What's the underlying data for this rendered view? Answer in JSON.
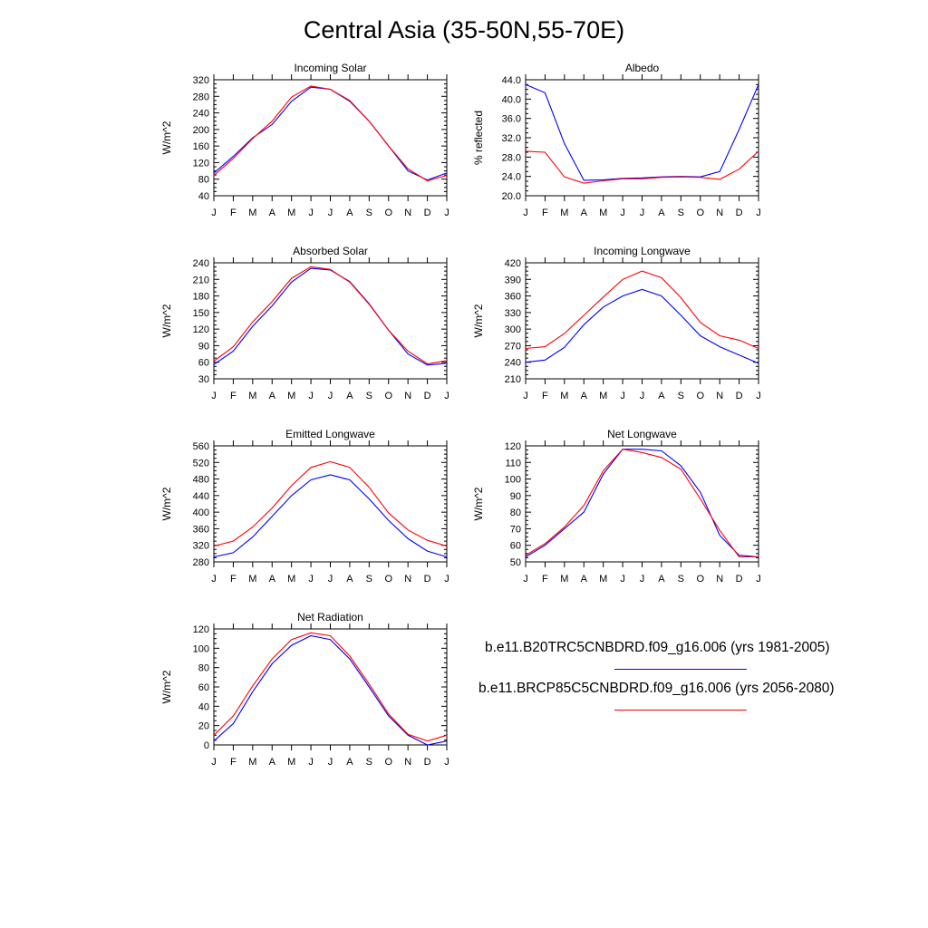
{
  "page": {
    "title": "Central Asia (35-50N,55-70E)"
  },
  "legend": [
    {
      "label": "b.e11.B20TRC5CNBDRD.f09_g16.006 (yrs 1981-2005)",
      "color": "#0000ff"
    },
    {
      "label": "b.e11.BRCP85C5CNBDRD.f09_g16.006 (yrs 2056-2080)",
      "color": "#ff0000"
    }
  ],
  "chart_data": [
    {
      "type": "line",
      "title": "Incoming Solar",
      "xlabel": "",
      "ylabel": "W/m^2",
      "categories": [
        "J",
        "F",
        "M",
        "A",
        "M",
        "J",
        "J",
        "A",
        "S",
        "O",
        "N",
        "D",
        "J"
      ],
      "ylim": [
        40,
        320
      ],
      "yticks": [
        40,
        80,
        120,
        160,
        200,
        240,
        280,
        320
      ],
      "ytick_labels": [
        "40",
        "80",
        "120",
        "160",
        "200",
        "240",
        "280",
        "320"
      ],
      "series": [
        {
          "color": "#0000ff",
          "values": [
            95,
            135,
            180,
            212,
            268,
            302,
            297,
            268,
            220,
            160,
            100,
            78,
            95
          ]
        },
        {
          "color": "#ff0000",
          "values": [
            89,
            130,
            178,
            220,
            278,
            305,
            297,
            270,
            220,
            160,
            105,
            76,
            89
          ]
        }
      ]
    },
    {
      "type": "line",
      "title": "Albedo",
      "xlabel": "",
      "ylabel": "% reflected",
      "categories": [
        "J",
        "F",
        "M",
        "A",
        "M",
        "J",
        "J",
        "A",
        "S",
        "O",
        "N",
        "D",
        "J"
      ],
      "ylim": [
        20,
        44
      ],
      "yticks": [
        20,
        24,
        28,
        32,
        36,
        40,
        44
      ],
      "ytick_labels": [
        "20.0",
        "24.0",
        "28.0",
        "32.0",
        "36.0",
        "40.0",
        "44.0"
      ],
      "series": [
        {
          "color": "#0000ff",
          "values": [
            43.0,
            41.3,
            30.8,
            23.2,
            23.3,
            23.6,
            23.7,
            23.9,
            24.0,
            23.9,
            25.0,
            33.7,
            43.0
          ]
        },
        {
          "color": "#ff0000",
          "values": [
            29.2,
            29.0,
            23.9,
            22.6,
            23.1,
            23.5,
            23.5,
            23.8,
            23.9,
            23.8,
            23.4,
            25.5,
            29.2
          ]
        }
      ]
    },
    {
      "type": "line",
      "title": "Absorbed Solar",
      "xlabel": "",
      "ylabel": "W/m^2",
      "categories": [
        "J",
        "F",
        "M",
        "A",
        "M",
        "J",
        "J",
        "A",
        "S",
        "O",
        "N",
        "D",
        "J"
      ],
      "ylim": [
        30,
        240
      ],
      "yticks": [
        30,
        60,
        90,
        120,
        150,
        180,
        210,
        240
      ],
      "ytick_labels": [
        "30",
        "60",
        "90",
        "120",
        "150",
        "180",
        "210",
        "240"
      ],
      "series": [
        {
          "color": "#0000ff",
          "values": [
            56,
            80,
            125,
            162,
            205,
            230,
            227,
            206,
            166,
            118,
            75,
            55,
            58
          ]
        },
        {
          "color": "#ff0000",
          "values": [
            62,
            88,
            133,
            170,
            212,
            233,
            228,
            205,
            165,
            118,
            80,
            57,
            63
          ]
        }
      ]
    },
    {
      "type": "line",
      "title": "Incoming Longwave",
      "xlabel": "",
      "ylabel": "W/m^2",
      "categories": [
        "J",
        "F",
        "M",
        "A",
        "M",
        "J",
        "J",
        "A",
        "S",
        "O",
        "N",
        "D",
        "J"
      ],
      "ylim": [
        210,
        420
      ],
      "yticks": [
        210,
        240,
        270,
        300,
        330,
        360,
        390,
        420
      ],
      "ytick_labels": [
        "210",
        "240",
        "270",
        "300",
        "330",
        "360",
        "390",
        "420"
      ],
      "series": [
        {
          "color": "#0000ff",
          "values": [
            240,
            244,
            267,
            308,
            340,
            360,
            372,
            360,
            325,
            288,
            268,
            253,
            238
          ]
        },
        {
          "color": "#ff0000",
          "values": [
            265,
            268,
            292,
            325,
            358,
            390,
            405,
            393,
            357,
            312,
            288,
            280,
            265
          ]
        }
      ]
    },
    {
      "type": "line",
      "title": "Emitted Longwave",
      "xlabel": "",
      "ylabel": "W/m^2",
      "categories": [
        "J",
        "F",
        "M",
        "A",
        "M",
        "J",
        "J",
        "A",
        "S",
        "O",
        "N",
        "D",
        "J"
      ],
      "ylim": [
        280,
        560
      ],
      "yticks": [
        280,
        320,
        360,
        400,
        440,
        480,
        520,
        560
      ],
      "ytick_labels": [
        "280",
        "320",
        "360",
        "400",
        "440",
        "480",
        "520",
        "560"
      ],
      "series": [
        {
          "color": "#0000ff",
          "values": [
            292,
            302,
            340,
            390,
            440,
            478,
            490,
            478,
            432,
            380,
            336,
            306,
            292
          ]
        },
        {
          "color": "#ff0000",
          "values": [
            318,
            330,
            364,
            410,
            464,
            508,
            522,
            508,
            460,
            398,
            357,
            332,
            318
          ]
        }
      ]
    },
    {
      "type": "line",
      "title": "Net Longwave",
      "xlabel": "",
      "ylabel": "W/m^2",
      "categories": [
        "J",
        "F",
        "M",
        "A",
        "M",
        "J",
        "J",
        "A",
        "S",
        "O",
        "N",
        "D",
        "J"
      ],
      "ylim": [
        50,
        120
      ],
      "yticks": [
        50,
        60,
        70,
        80,
        90,
        100,
        110,
        120
      ],
      "ytick_labels": [
        "50",
        "60",
        "70",
        "80",
        "90",
        "100",
        "110",
        "120"
      ],
      "series": [
        {
          "color": "#0000ff",
          "values": [
            53,
            60,
            70,
            80,
            103,
            118,
            118,
            117,
            108,
            92,
            66,
            54,
            53
          ]
        },
        {
          "color": "#ff0000",
          "values": [
            54,
            61,
            71,
            84,
            105,
            118,
            116,
            113,
            106,
            88,
            69,
            53,
            53
          ]
        }
      ]
    },
    {
      "type": "line",
      "title": "Net Radiation",
      "xlabel": "",
      "ylabel": "W/m^2",
      "categories": [
        "J",
        "F",
        "M",
        "A",
        "M",
        "J",
        "J",
        "A",
        "S",
        "O",
        "N",
        "D",
        "J"
      ],
      "ylim": [
        0,
        120
      ],
      "yticks": [
        0,
        20,
        40,
        60,
        80,
        100,
        120
      ],
      "ytick_labels": [
        "0",
        "20",
        "40",
        "60",
        "80",
        "100",
        "120"
      ],
      "series": [
        {
          "color": "#0000ff",
          "values": [
            4,
            22,
            55,
            84,
            103,
            113,
            109,
            89,
            60,
            30,
            10,
            0,
            4
          ]
        },
        {
          "color": "#ff0000",
          "values": [
            10,
            30,
            61,
            89,
            109,
            116,
            113,
            92,
            63,
            32,
            11,
            4,
            10
          ]
        }
      ]
    }
  ]
}
